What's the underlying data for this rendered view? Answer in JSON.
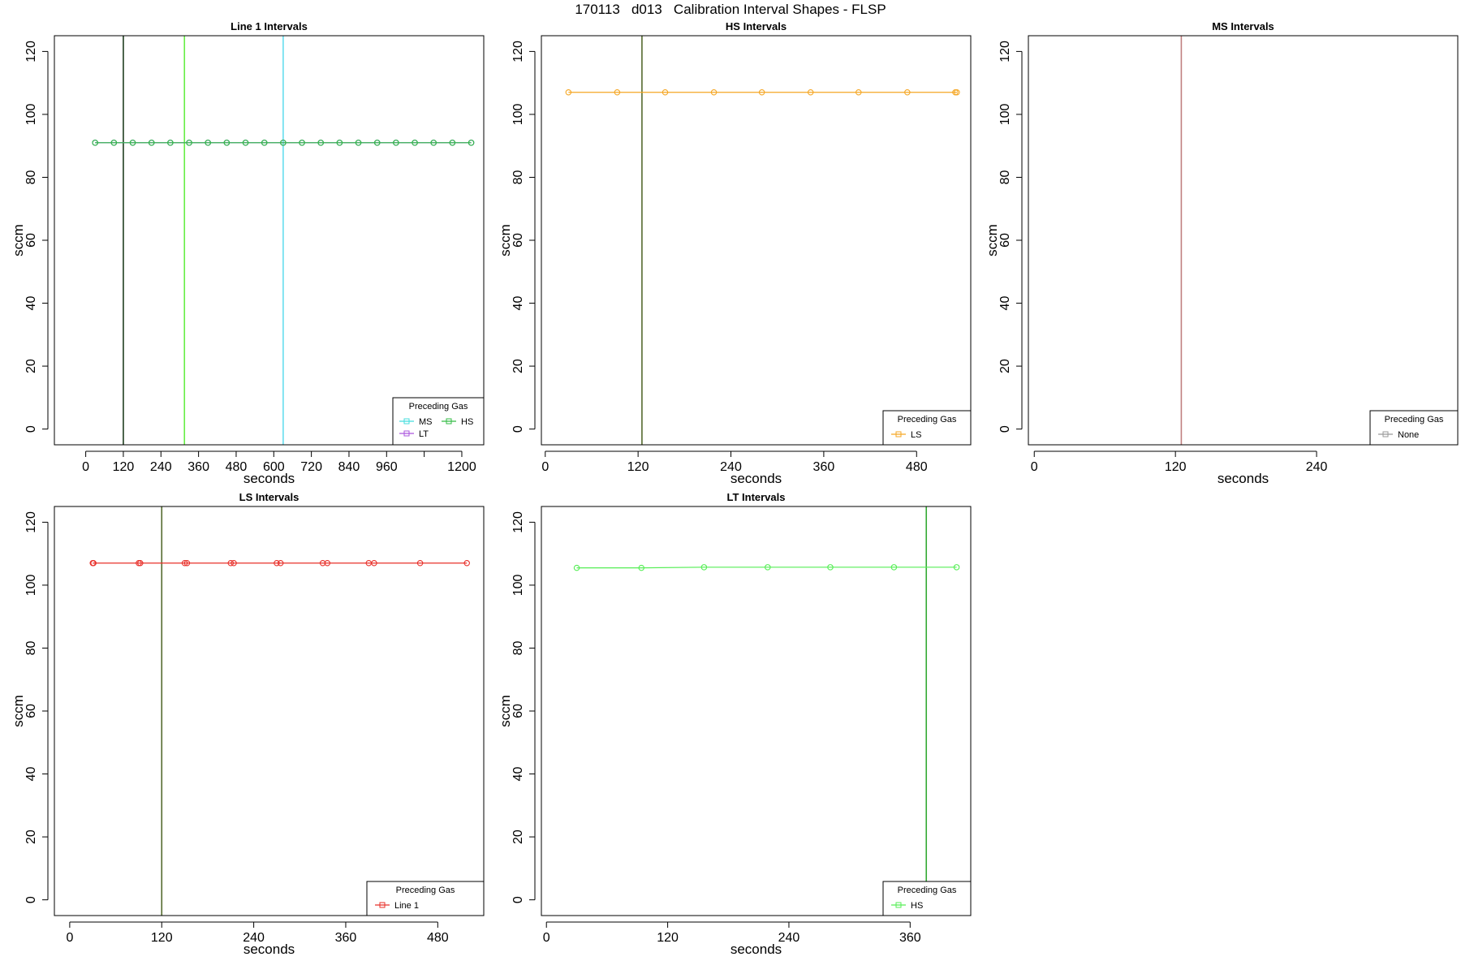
{
  "title": "170113   d013   Calibration Interval Shapes - FLSP",
  "chart_data": [
    {
      "type": "line",
      "title": "Line 1 Intervals",
      "xlabel": "seconds",
      "ylabel": "sccm",
      "xlim": [
        -100,
        1270
      ],
      "ylim": [
        -5,
        125
      ],
      "xticks": [
        0,
        120,
        240,
        360,
        480,
        600,
        720,
        840,
        960,
        1080,
        1200
      ],
      "xtick_labels": [
        "0",
        "120",
        "240",
        "360",
        "480",
        "600",
        "720",
        "840",
        "960",
        "",
        "1200"
      ],
      "yticks": [
        0,
        20,
        40,
        60,
        80,
        100,
        120
      ],
      "vlines": [
        {
          "x": 120,
          "color": "#1f3d1f"
        },
        {
          "x": 315,
          "color": "#66ee44"
        },
        {
          "x": 630,
          "color": "#66ddee"
        }
      ],
      "series": [
        {
          "name": "MS",
          "color": "#44dddd",
          "x": [
            30,
            90,
            150,
            210,
            270,
            330,
            390,
            450,
            510,
            570,
            630,
            690,
            750,
            810,
            870,
            930,
            990,
            1050,
            1110,
            1170,
            1230
          ],
          "y": [
            91,
            91,
            91,
            91,
            91,
            91,
            91,
            91,
            91,
            91,
            91,
            91,
            91,
            91,
            91,
            91,
            91,
            91,
            91,
            91,
            91
          ]
        },
        {
          "name": "LT",
          "color": "#aa55dd",
          "x": [
            30,
            90,
            150,
            210,
            270,
            330,
            390,
            450,
            510,
            570,
            630,
            690,
            750,
            810,
            870,
            930,
            990,
            1050,
            1110,
            1170,
            1230
          ],
          "y": [
            91,
            91,
            91,
            91,
            91,
            91,
            91,
            91,
            91,
            91,
            91,
            91,
            91,
            91,
            91,
            91,
            91,
            91,
            91,
            91,
            91
          ]
        },
        {
          "name": "HS",
          "color": "#33bb44",
          "x": [
            30,
            90,
            150,
            210,
            270,
            330,
            390,
            450,
            510,
            570,
            630,
            690,
            750,
            810,
            870,
            930,
            990,
            1050,
            1110,
            1170,
            1230
          ],
          "y": [
            91,
            91,
            91,
            91,
            91,
            91,
            91,
            91,
            91,
            91,
            91,
            91,
            91,
            91,
            91,
            91,
            91,
            91,
            91,
            91,
            91
          ]
        }
      ],
      "legend": {
        "title": "Preceding Gas",
        "placement": "bottom-right",
        "entries": [
          "MS",
          "HS",
          "LT"
        ]
      }
    },
    {
      "type": "line",
      "title": "HS Intervals",
      "xlabel": "seconds",
      "ylabel": "sccm",
      "xlim": [
        -5,
        550
      ],
      "ylim": [
        -5,
        125
      ],
      "xticks": [
        0,
        120,
        240,
        360,
        480
      ],
      "xtick_labels": [
        "0",
        "120",
        "240",
        "360",
        "480"
      ],
      "yticks": [
        0,
        20,
        40,
        60,
        80,
        100,
        120
      ],
      "vlines": [
        {
          "x": 125,
          "color": "#556b2f"
        }
      ],
      "series": [
        {
          "name": "LS",
          "color": "#f5a623",
          "x": [
            30,
            93,
            155,
            218,
            280,
            343,
            405,
            468,
            530,
            532
          ],
          "y": [
            107,
            107,
            107,
            107,
            107,
            107,
            107,
            107,
            107,
            107
          ]
        }
      ],
      "legend": {
        "title": "Preceding Gas",
        "placement": "bottom-right",
        "entries": [
          "LS"
        ]
      }
    },
    {
      "type": "line",
      "title": "MS Intervals",
      "xlabel": "seconds",
      "ylabel": "sccm",
      "xlim": [
        -5,
        360
      ],
      "ylim": [
        -5,
        125
      ],
      "xticks": [
        0,
        120,
        240
      ],
      "xtick_labels": [
        "0",
        "120",
        "240"
      ],
      "yticks": [
        0,
        20,
        40,
        60,
        80,
        100,
        120
      ],
      "vlines": [
        {
          "x": 125,
          "color": "#c08080"
        }
      ],
      "series": [
        {
          "name": "None",
          "color": "#999999",
          "x": [],
          "y": []
        }
      ],
      "legend": {
        "title": "Preceding Gas",
        "placement": "bottom-right",
        "entries": [
          "None"
        ]
      }
    },
    {
      "type": "line",
      "title": "LS Intervals",
      "xlabel": "seconds",
      "ylabel": "sccm",
      "xlim": [
        -20,
        540
      ],
      "ylim": [
        -5,
        125
      ],
      "xticks": [
        0,
        120,
        240,
        360,
        480
      ],
      "xtick_labels": [
        "0",
        "120",
        "240",
        "360",
        "480"
      ],
      "yticks": [
        0,
        20,
        40,
        60,
        80,
        100,
        120
      ],
      "vlines": [
        {
          "x": 120,
          "color": "#556b2f"
        }
      ],
      "series": [
        {
          "name": "Line 1",
          "color": "#e8302a",
          "x": [
            30,
            31,
            90,
            92,
            150,
            153,
            210,
            214,
            270,
            275,
            330,
            336,
            390,
            397,
            457,
            518
          ],
          "y": [
            107,
            107,
            107,
            107,
            107,
            107,
            107,
            107,
            107,
            107,
            107,
            107,
            107,
            107,
            107,
            107
          ]
        }
      ],
      "legend": {
        "title": "Preceding Gas",
        "placement": "bottom-right",
        "entries": [
          "Line 1"
        ]
      }
    },
    {
      "type": "line",
      "title": "LT Intervals",
      "xlabel": "seconds",
      "ylabel": "sccm",
      "xlim": [
        -5,
        420
      ],
      "ylim": [
        -5,
        125
      ],
      "xticks": [
        0,
        120,
        240,
        360
      ],
      "xtick_labels": [
        "0",
        "120",
        "240",
        "360"
      ],
      "yticks": [
        0,
        20,
        40,
        60,
        80,
        100,
        120
      ],
      "vlines": [
        {
          "x": 376,
          "color": "#33aa33"
        }
      ],
      "series": [
        {
          "name": "HS",
          "color": "#55ee55",
          "x": [
            30,
            94,
            156,
            219,
            281,
            344,
            406
          ],
          "y": [
            105.5,
            105.5,
            105.7,
            105.7,
            105.7,
            105.7,
            105.7
          ]
        }
      ],
      "legend": {
        "title": "Preceding Gas",
        "placement": "bottom-right",
        "entries": [
          "HS"
        ]
      }
    }
  ]
}
